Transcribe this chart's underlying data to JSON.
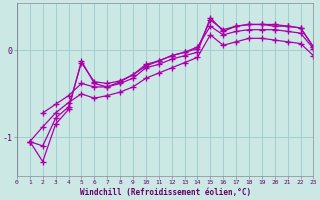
{
  "xlabel": "Windchill (Refroidissement éolien,°C)",
  "bg_color": "#cce8e4",
  "line_color": "#aa00aa",
  "grid_color": "#99cccc",
  "axis_label_color": "#660066",
  "tick_label_color": "#660066",
  "yticks": [
    -1,
    0
  ],
  "xticks": [
    0,
    1,
    2,
    3,
    4,
    5,
    6,
    7,
    8,
    9,
    10,
    11,
    12,
    13,
    14,
    15,
    16,
    17,
    18,
    19,
    20,
    21,
    22,
    23
  ],
  "xlim": [
    0,
    23
  ],
  "ylim": [
    -1.45,
    0.55
  ],
  "series": [
    {
      "x": [
        1,
        2,
        3,
        4,
        5,
        6,
        7,
        8,
        9,
        10,
        11,
        12,
        13,
        14,
        15,
        16,
        17,
        18,
        19,
        20,
        21,
        22,
        23
      ],
      "y": [
        -1.05,
        -1.28,
        -0.85,
        -0.68,
        -0.12,
        -0.38,
        -0.42,
        -0.38,
        -0.32,
        -0.2,
        -0.16,
        -0.1,
        -0.06,
        -0.02,
        0.38,
        0.22,
        0.28,
        0.3,
        0.3,
        0.3,
        0.28,
        0.26,
        0.04
      ]
    },
    {
      "x": [
        1,
        2,
        3,
        4,
        5,
        6,
        7,
        8,
        9,
        10,
        11,
        12,
        13,
        14,
        15,
        16,
        17,
        18,
        19,
        20,
        21,
        22,
        23
      ],
      "y": [
        -1.05,
        -1.1,
        -0.78,
        -0.65,
        -0.14,
        -0.36,
        -0.38,
        -0.35,
        -0.28,
        -0.16,
        -0.12,
        -0.06,
        -0.02,
        0.02,
        0.35,
        0.24,
        0.28,
        0.3,
        0.3,
        0.28,
        0.28,
        0.26,
        0.04
      ]
    },
    {
      "x": [
        2,
        3,
        4,
        5,
        6,
        7,
        8,
        9,
        10,
        11,
        12,
        13,
        14,
        15,
        16,
        17,
        18,
        19,
        20,
        21,
        22,
        23
      ],
      "y": [
        -0.72,
        -0.62,
        -0.52,
        -0.38,
        -0.42,
        -0.42,
        -0.36,
        -0.28,
        -0.18,
        -0.12,
        -0.06,
        -0.02,
        0.04,
        0.28,
        0.18,
        0.22,
        0.24,
        0.24,
        0.24,
        0.22,
        0.2,
        0.02
      ]
    },
    {
      "x": [
        1,
        2,
        3,
        4,
        5,
        6,
        7,
        8,
        9,
        10,
        11,
        12,
        13,
        14,
        15,
        16,
        17,
        18,
        19,
        20,
        21,
        22,
        23
      ],
      "y": [
        -1.05,
        -0.88,
        -0.72,
        -0.6,
        -0.5,
        -0.55,
        -0.52,
        -0.48,
        -0.42,
        -0.32,
        -0.26,
        -0.2,
        -0.14,
        -0.08,
        0.18,
        0.06,
        0.1,
        0.14,
        0.14,
        0.12,
        0.1,
        0.08,
        -0.06
      ]
    }
  ]
}
